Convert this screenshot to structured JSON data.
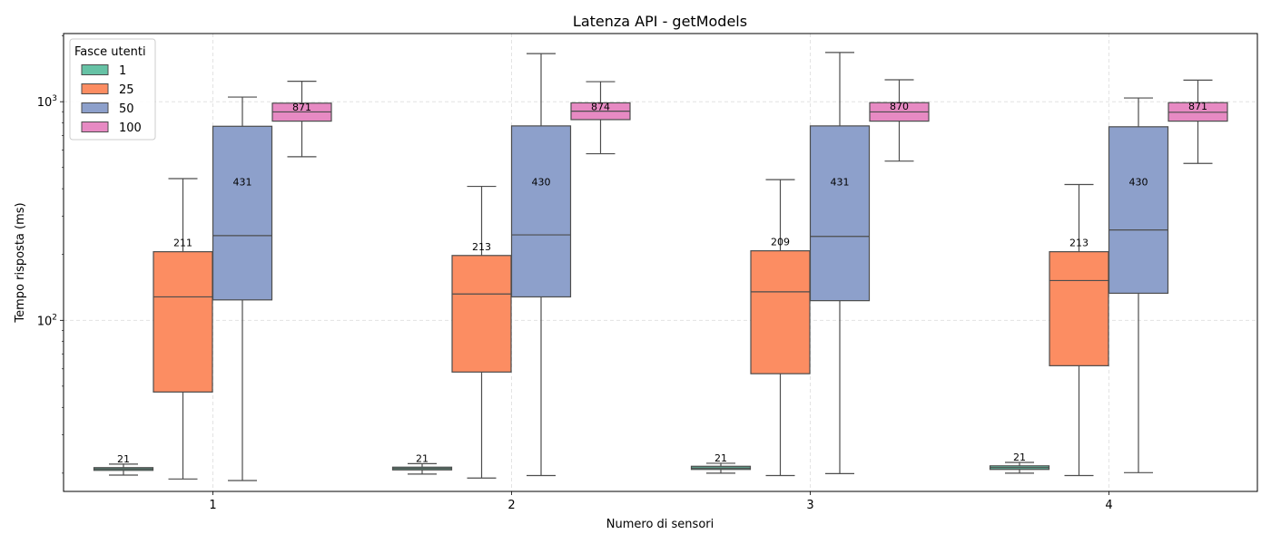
{
  "chart_data": {
    "type": "box",
    "title": "Latenza API - getModels",
    "xlabel": "Numero di sensori",
    "ylabel": "Tempo risposta (ms)",
    "yscale": "log",
    "ylim": [
      16.5,
      2050
    ],
    "yticks": [
      {
        "value": 100,
        "label": "10^2",
        "base": "10",
        "exp": "2"
      },
      {
        "value": 1000,
        "label": "10^3",
        "base": "10",
        "exp": "3"
      }
    ],
    "grid": true,
    "categories": [
      "1",
      "2",
      "3",
      "4"
    ],
    "legend": {
      "title": "Fasce utenti",
      "placement": "top-left",
      "entries": [
        "1",
        "25",
        "50",
        "100"
      ]
    },
    "series": [
      {
        "name": "1",
        "color": "#66c2a5",
        "boxes": [
          {
            "min": 19.6,
            "q1": 20.6,
            "median": 20.9,
            "q3": 21.2,
            "max": 22.0,
            "label": "21"
          },
          {
            "min": 19.8,
            "q1": 20.7,
            "median": 21.0,
            "q3": 21.3,
            "max": 22.1,
            "label": "21"
          },
          {
            "min": 20.0,
            "q1": 20.8,
            "median": 21.1,
            "q3": 21.5,
            "max": 22.2,
            "label": "21"
          },
          {
            "min": 20.0,
            "q1": 20.8,
            "median": 21.2,
            "q3": 21.6,
            "max": 22.4,
            "label": "21"
          }
        ]
      },
      {
        "name": "25",
        "color": "#fc8d62",
        "boxes": [
          {
            "min": 18.8,
            "q1": 47,
            "median": 128,
            "q3": 206,
            "max": 445,
            "label": "211"
          },
          {
            "min": 19.0,
            "q1": 58,
            "median": 132,
            "q3": 198,
            "max": 410,
            "label": "213"
          },
          {
            "min": 19.5,
            "q1": 57,
            "median": 135,
            "q3": 208,
            "max": 440,
            "label": "209"
          },
          {
            "min": 19.5,
            "q1": 62,
            "median": 152,
            "q3": 206,
            "max": 418,
            "label": "213"
          }
        ]
      },
      {
        "name": "50",
        "color": "#8da0cb",
        "boxes": [
          {
            "min": 18.5,
            "q1": 124,
            "median": 244,
            "q3": 772,
            "max": 1050,
            "label": "431"
          },
          {
            "min": 19.5,
            "q1": 128,
            "median": 246,
            "q3": 775,
            "max": 1660,
            "label": "430"
          },
          {
            "min": 19.9,
            "q1": 123,
            "median": 242,
            "q3": 775,
            "max": 1680,
            "label": "431"
          },
          {
            "min": 20.1,
            "q1": 133,
            "median": 259,
            "q3": 768,
            "max": 1040,
            "label": "430"
          }
        ]
      },
      {
        "name": "100",
        "color": "#e78ac3",
        "boxes": [
          {
            "min": 560,
            "q1": 815,
            "median": 898,
            "q3": 985,
            "max": 1240,
            "label": "871"
          },
          {
            "min": 578,
            "q1": 828,
            "median": 905,
            "q3": 988,
            "max": 1235,
            "label": "874"
          },
          {
            "min": 535,
            "q1": 815,
            "median": 898,
            "q3": 990,
            "max": 1260,
            "label": "870"
          },
          {
            "min": 522,
            "q1": 815,
            "median": 895,
            "q3": 990,
            "max": 1255,
            "label": "871"
          }
        ]
      }
    ]
  }
}
